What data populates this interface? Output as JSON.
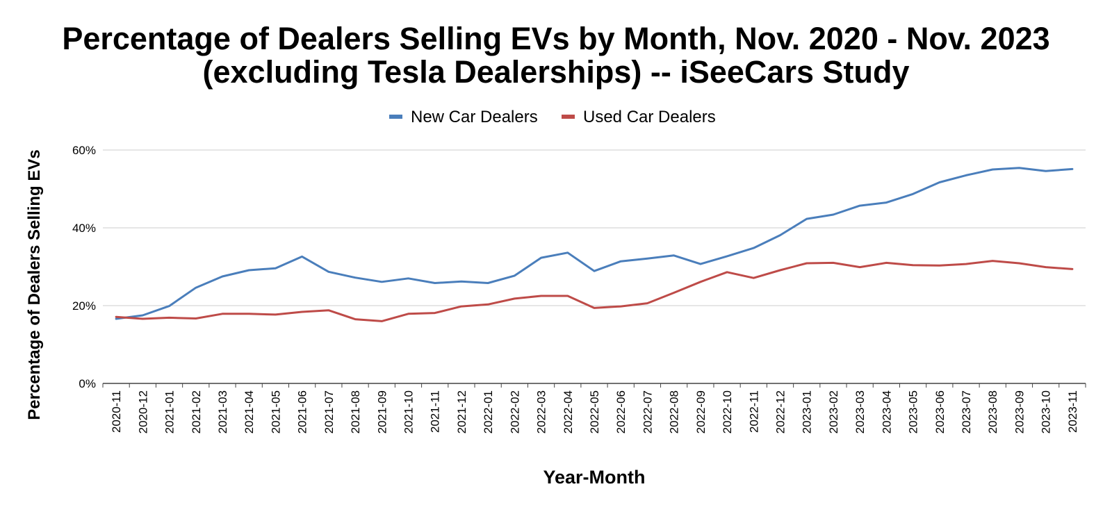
{
  "chart_data": {
    "type": "line",
    "title_line1": "Percentage of Dealers Selling EVs by Month, Nov. 2020 - Nov. 2023",
    "title_line2": "(excluding Tesla Dealerships) -- iSeeCars Study",
    "xlabel": "Year-Month",
    "ylabel": "Percentage of Dealers Selling EVs",
    "ylim": [
      0,
      60
    ],
    "yticks": [
      "0%",
      "20%",
      "40%",
      "60%"
    ],
    "yticks_values": [
      0,
      20,
      40,
      60
    ],
    "grid": true,
    "legend_position": "top",
    "categories": [
      "2020-11",
      "2020-12",
      "2021-01",
      "2021-02",
      "2021-03",
      "2021-04",
      "2021-05",
      "2021-06",
      "2021-07",
      "2021-08",
      "2021-09",
      "2021-10",
      "2021-11",
      "2021-12",
      "2022-01",
      "2022-02",
      "2022-03",
      "2022-04",
      "2022-05",
      "2022-06",
      "2022-07",
      "2022-08",
      "2022-09",
      "2022-10",
      "2022-11",
      "2022-12",
      "2023-01",
      "2023-02",
      "2023-03",
      "2023-04",
      "2023-05",
      "2023-06",
      "2023-07",
      "2023-08",
      "2023-09",
      "2023-10",
      "2023-11"
    ],
    "series": [
      {
        "name": "New Car Dealers",
        "color": "#4a7ebb",
        "values": [
          16.6,
          17.5,
          19.9,
          24.6,
          27.5,
          29.1,
          29.6,
          32.6,
          28.7,
          27.2,
          26.1,
          27.0,
          25.8,
          26.2,
          25.8,
          27.7,
          32.3,
          33.6,
          28.9,
          31.4,
          32.1,
          32.9,
          30.7,
          32.7,
          34.8,
          38.1,
          42.3,
          43.4,
          45.7,
          46.5,
          48.7,
          51.7,
          53.5,
          55.0,
          55.4,
          54.6,
          55.1
        ]
      },
      {
        "name": "Used Car Dealers",
        "color": "#be4b48",
        "values": [
          17.1,
          16.6,
          16.9,
          16.7,
          17.9,
          17.9,
          17.7,
          18.4,
          18.8,
          16.5,
          16.0,
          17.9,
          18.1,
          19.8,
          20.3,
          21.8,
          22.5,
          22.5,
          19.4,
          19.8,
          20.6,
          23.3,
          26.1,
          28.6,
          27.1,
          29.1,
          30.9,
          31.0,
          29.9,
          31.0,
          30.4,
          30.3,
          30.7,
          31.5,
          30.9,
          29.9,
          29.4
        ]
      }
    ]
  }
}
